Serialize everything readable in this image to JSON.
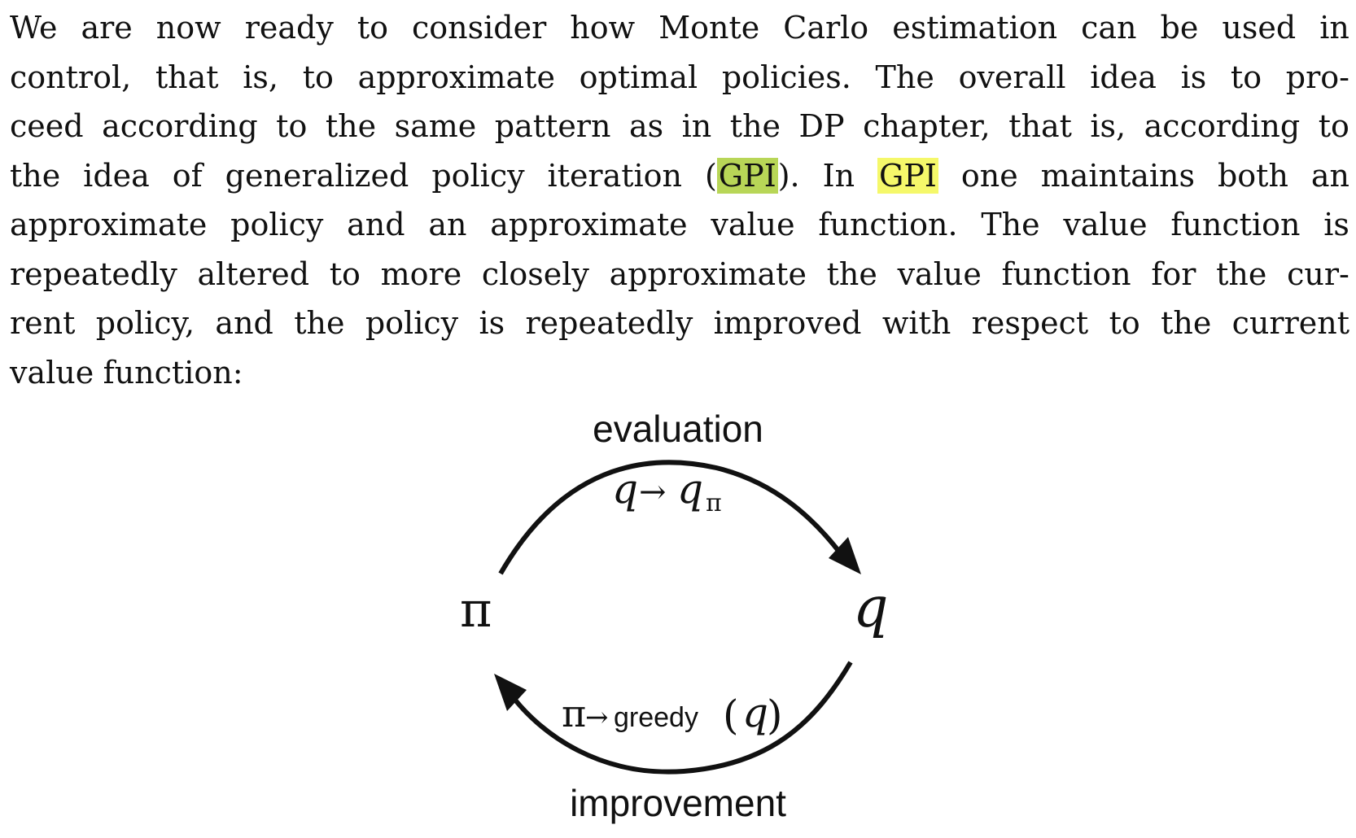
{
  "paragraph": {
    "lines": [
      {
        "words": [
          "We",
          "are",
          "now",
          "ready",
          "to",
          "consider",
          "how",
          "Monte",
          "Carlo",
          "estimation",
          "can",
          "be",
          "used",
          "in"
        ]
      },
      {
        "words": [
          "control,",
          "that",
          "is,",
          "to",
          "approximate",
          "optimal",
          "policies.",
          "The",
          "overall",
          "idea",
          "is",
          "to",
          "pro-"
        ]
      },
      {
        "words": [
          "ceed",
          "according",
          "to",
          "the",
          "same",
          "pattern",
          "as",
          "in",
          "the",
          "DP",
          "chapter,",
          "that",
          "is,",
          "according",
          "to"
        ]
      },
      {
        "words": [
          "the",
          "idea",
          "of",
          "generalized",
          "policy",
          "iteration",
          "(GPI).",
          "In",
          "GPI",
          "one",
          "maintains",
          "both",
          "an"
        ]
      },
      {
        "words": [
          "approximate",
          "policy",
          "and",
          "an",
          "approximate",
          "value",
          "function.",
          "The",
          "value",
          "function",
          "is"
        ]
      },
      {
        "words": [
          "repeatedly",
          "altered",
          "to",
          "more",
          "closely",
          "approximate",
          "the",
          "value",
          "function",
          "for",
          "the",
          "cur-"
        ]
      },
      {
        "words": [
          "rent",
          "policy,",
          "and",
          "the",
          "policy",
          "is",
          "repeatedly",
          "improved",
          "with",
          "respect",
          "to",
          "the",
          "current"
        ]
      },
      {
        "words": [
          "value",
          "function:"
        ]
      }
    ],
    "highlight_colors": {
      "green": "#b8d657",
      "yellow": "#f5f86a"
    }
  },
  "diagram": {
    "top_label": "evaluation",
    "top_formula_q": "q",
    "top_formula_arrow": "→",
    "top_formula_q2": "q",
    "top_formula_sub": "π",
    "left_node": "π",
    "right_node": "q",
    "bottom_formula_pi": "π",
    "bottom_formula_arrow": "→",
    "bottom_formula_greedy": "greedy",
    "bottom_formula_open": "(",
    "bottom_formula_q": "q",
    "bottom_formula_close": ")",
    "bottom_label": "improvement"
  }
}
